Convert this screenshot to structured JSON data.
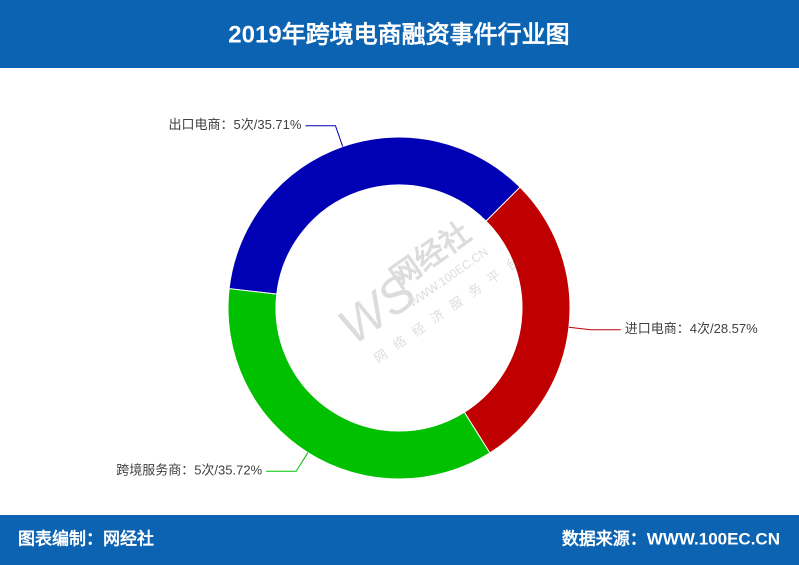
{
  "chart_data": {
    "type": "donut",
    "title": "2019年跨境电商融资事件行业图",
    "categories": [
      "出口电商",
      "进口电商",
      "跨境服务商"
    ],
    "counts": [
      5,
      4,
      5
    ],
    "values": [
      35.71,
      28.57,
      35.72
    ],
    "value_labels": [
      "出口电商：5次/35.71%",
      "进口电商：4次/28.57%",
      "跨境服务商：5次/35.72%"
    ],
    "colors": [
      "#0000b4",
      "#c00000",
      "#00c000"
    ]
  },
  "watermark": {
    "logo": "WS",
    "name": "网经社",
    "url": "WWW.100EC.CN",
    "slogan": "网络经济服务平台"
  },
  "footer": {
    "left": "图表编制：网经社",
    "right": "数据来源：WWW.100EC.CN"
  }
}
